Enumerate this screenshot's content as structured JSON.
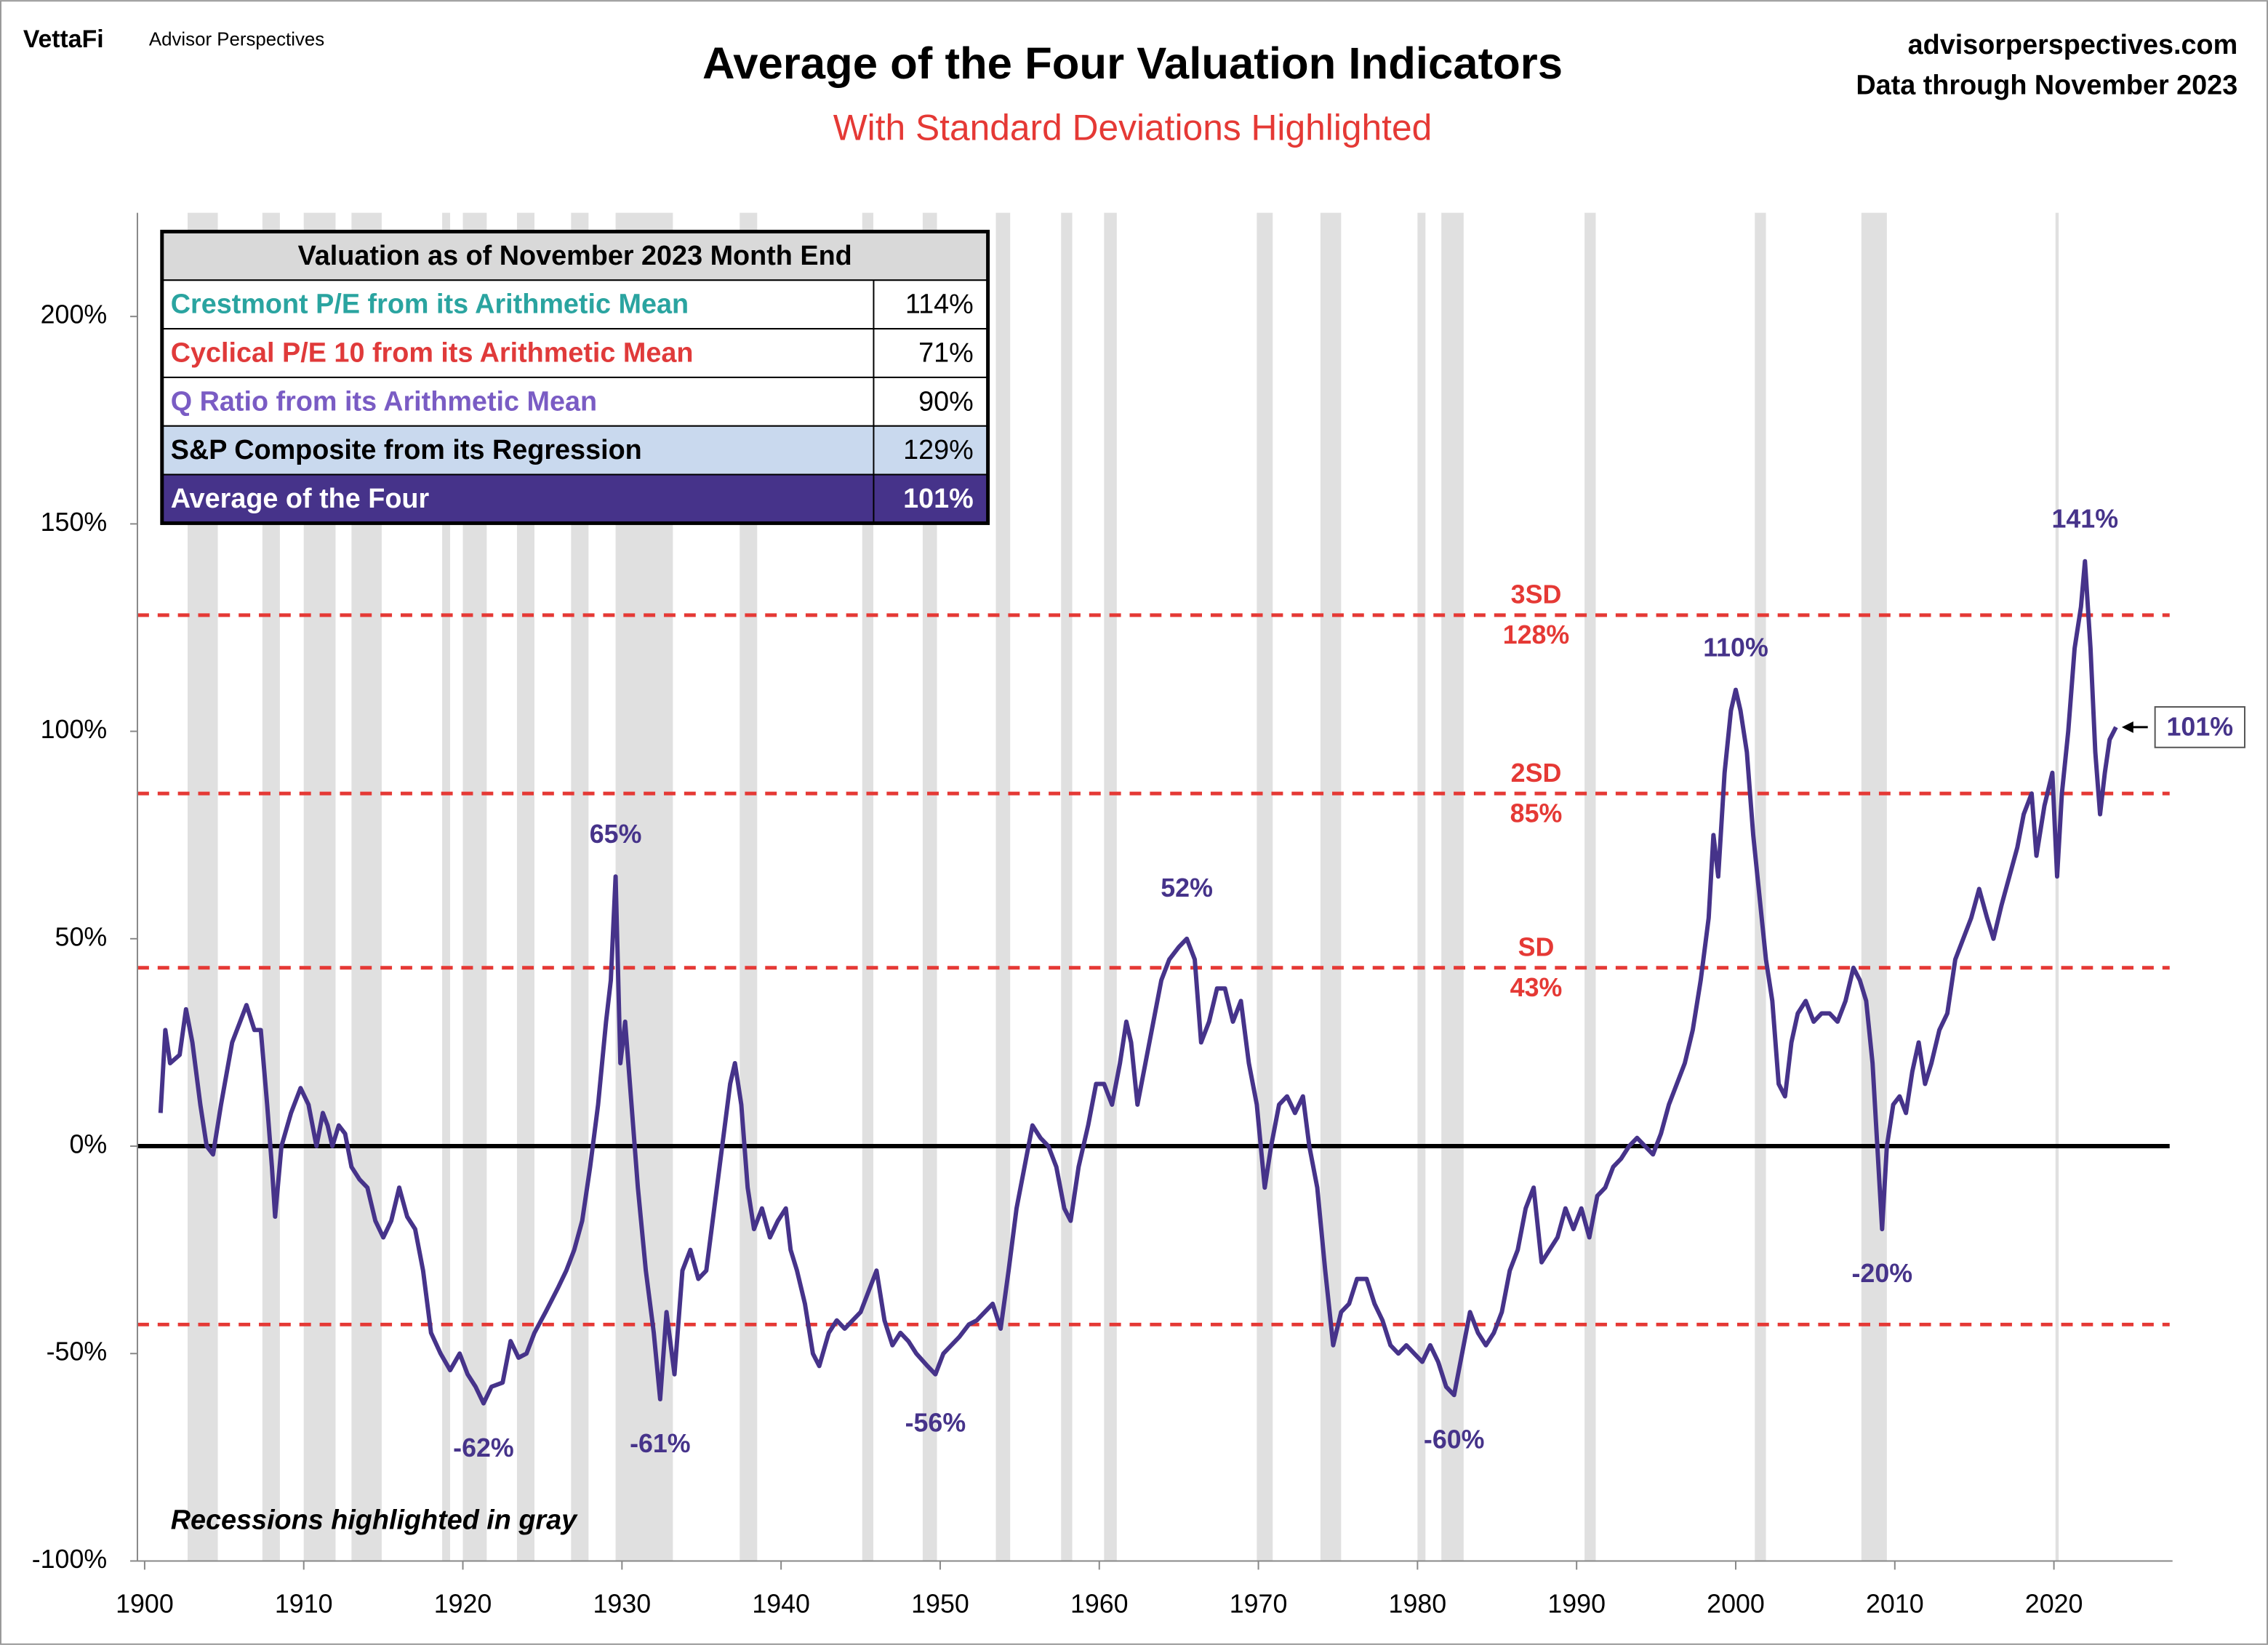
{
  "header": {
    "brand": "VettaFi",
    "brand_sub": "Advisor Perspectives",
    "site": "advisorperspectives.com",
    "data_through": "Data through November 2023"
  },
  "chart_data": {
    "type": "line",
    "title": "Average of the Four Valuation Indicators",
    "subtitle": "With Standard Deviations Highlighted",
    "note": "Recessions highlighted in gray",
    "color": "#46338a",
    "xlim": [
      1899.5,
      2027.5
    ],
    "xticks": [
      1900,
      1910,
      1920,
      1930,
      1940,
      1950,
      1960,
      1970,
      1980,
      1990,
      2000,
      2010,
      2020
    ],
    "ylim": [
      -100,
      225
    ],
    "yticks": [
      {
        "value": -100,
        "label": "-100%"
      },
      {
        "value": -50,
        "label": "-50%"
      },
      {
        "value": 0,
        "label": "0%"
      },
      {
        "value": 50,
        "label": "50%"
      },
      {
        "value": 100,
        "label": "100%"
      },
      {
        "value": 150,
        "label": "150%"
      },
      {
        "value": 200,
        "label": "200%"
      }
    ],
    "recessions": [
      [
        1902.7,
        1904.6
      ],
      [
        1907.4,
        1908.5
      ],
      [
        1910.0,
        1912.0
      ],
      [
        1913.0,
        1914.9
      ],
      [
        1918.7,
        1919.2
      ],
      [
        1920.0,
        1921.5
      ],
      [
        1923.4,
        1924.5
      ],
      [
        1926.8,
        1927.9
      ],
      [
        1929.6,
        1933.2
      ],
      [
        1937.4,
        1938.5
      ],
      [
        1945.1,
        1945.8
      ],
      [
        1948.9,
        1949.8
      ],
      [
        1953.5,
        1954.4
      ],
      [
        1957.6,
        1958.3
      ],
      [
        1960.3,
        1961.1
      ],
      [
        1969.9,
        1970.9
      ],
      [
        1973.9,
        1975.2
      ],
      [
        1980.0,
        1980.5
      ],
      [
        1981.5,
        1982.9
      ],
      [
        1990.5,
        1991.2
      ],
      [
        2001.2,
        2001.9
      ],
      [
        2007.9,
        2009.5
      ],
      [
        2020.1,
        2020.3
      ]
    ],
    "recession_color": "#e0e0e0",
    "reference_lines": [
      {
        "name": "3SD",
        "value": 128,
        "value_label": "128%"
      },
      {
        "name": "2SD",
        "value": 85,
        "value_label": "85%"
      },
      {
        "name": "SD",
        "value": 43,
        "value_label": "43%"
      },
      {
        "value": -43
      }
    ],
    "reference_color": "#e53935",
    "x": [
      1901.0,
      1901.3,
      1901.6,
      1902.2,
      1902.6,
      1903.0,
      1903.5,
      1903.9,
      1904.3,
      1904.8,
      1905.5,
      1906.0,
      1906.4,
      1906.9,
      1907.3,
      1907.7,
      1908.0,
      1908.2,
      1908.6,
      1909.2,
      1909.8,
      1910.3,
      1910.8,
      1911.2,
      1911.5,
      1911.8,
      1912.2,
      1912.6,
      1913.0,
      1913.5,
      1914.0,
      1914.5,
      1915.0,
      1915.5,
      1916.0,
      1916.5,
      1917.0,
      1917.5,
      1918.0,
      1918.6,
      1919.2,
      1919.8,
      1920.3,
      1920.8,
      1921.3,
      1921.8,
      1922.5,
      1923.0,
      1923.5,
      1924.0,
      1924.5,
      1925.2,
      1926.0,
      1926.5,
      1927.0,
      1927.5,
      1928.0,
      1928.5,
      1929.0,
      1929.3,
      1929.6,
      1929.9,
      1930.2,
      1930.6,
      1931.0,
      1931.5,
      1932.0,
      1932.4,
      1932.8,
      1933.3,
      1933.8,
      1934.3,
      1934.8,
      1935.3,
      1935.8,
      1936.3,
      1936.8,
      1937.1,
      1937.5,
      1937.9,
      1938.3,
      1938.8,
      1939.3,
      1939.8,
      1940.3,
      1940.6,
      1941.0,
      1941.5,
      1942.0,
      1942.4,
      1943.0,
      1943.5,
      1944.0,
      1944.5,
      1945.0,
      1945.5,
      1946.0,
      1946.5,
      1947.0,
      1947.5,
      1948.0,
      1948.5,
      1949.2,
      1949.7,
      1950.2,
      1950.7,
      1951.2,
      1951.8,
      1952.3,
      1952.8,
      1953.3,
      1953.8,
      1954.3,
      1954.8,
      1955.3,
      1955.8,
      1956.3,
      1956.8,
      1957.3,
      1957.8,
      1958.2,
      1958.7,
      1959.3,
      1959.8,
      1960.3,
      1960.8,
      1961.3,
      1961.7,
      1962.0,
      1962.4,
      1962.9,
      1963.4,
      1963.9,
      1964.4,
      1965.0,
      1965.5,
      1966.0,
      1966.4,
      1966.9,
      1967.4,
      1967.9,
      1968.4,
      1968.9,
      1969.4,
      1969.9,
      1970.4,
      1970.8,
      1971.3,
      1971.8,
      1972.3,
      1972.8,
      1973.2,
      1973.7,
      1974.2,
      1974.7,
      1975.2,
      1975.7,
      1976.2,
      1976.8,
      1977.3,
      1977.8,
      1978.3,
      1978.8,
      1979.3,
      1979.8,
      1980.3,
      1980.8,
      1981.3,
      1981.8,
      1982.3,
      1982.8,
      1983.3,
      1983.8,
      1984.3,
      1984.8,
      1985.3,
      1985.8,
      1986.3,
      1986.8,
      1987.3,
      1987.8,
      1988.3,
      1988.8,
      1989.3,
      1989.8,
      1990.3,
      1990.8,
      1991.3,
      1991.8,
      1992.3,
      1992.8,
      1993.3,
      1993.8,
      1994.3,
      1994.8,
      1995.3,
      1995.8,
      1996.3,
      1996.8,
      1997.3,
      1997.8,
      1998.3,
      1998.6,
      1998.9,
      1999.3,
      1999.7,
      2000.0,
      2000.3,
      2000.7,
      2001.1,
      2001.5,
      2001.9,
      2002.3,
      2002.7,
      2003.1,
      2003.5,
      2003.9,
      2004.4,
      2004.9,
      2005.4,
      2005.9,
      2006.4,
      2006.9,
      2007.4,
      2007.8,
      2008.2,
      2008.6,
      2008.9,
      2009.2,
      2009.5,
      2009.9,
      2010.3,
      2010.7,
      2011.1,
      2011.5,
      2011.9,
      2012.3,
      2012.8,
      2013.3,
      2013.8,
      2014.3,
      2014.8,
      2015.3,
      2015.8,
      2016.2,
      2016.7,
      2017.2,
      2017.7,
      2018.1,
      2018.6,
      2018.9,
      2019.4,
      2019.9,
      2020.2,
      2020.5,
      2020.9,
      2021.3,
      2021.7,
      2021.95,
      2022.3,
      2022.6,
      2022.9,
      2023.2,
      2023.5,
      2023.9
    ],
    "values": [
      8,
      28,
      20,
      22,
      33,
      25,
      10,
      0,
      -2,
      10,
      25,
      30,
      34,
      28,
      28,
      10,
      -5,
      -17,
      0,
      8,
      14,
      10,
      0,
      8,
      5,
      0,
      5,
      3,
      -5,
      -8,
      -10,
      -18,
      -22,
      -18,
      -10,
      -17,
      -20,
      -30,
      -45,
      -50,
      -54,
      -50,
      -55,
      -58,
      -62,
      -58,
      -57,
      -47,
      -51,
      -50,
      -45,
      -40,
      -34,
      -30,
      -25,
      -18,
      -5,
      10,
      30,
      40,
      65,
      20,
      30,
      10,
      -10,
      -30,
      -45,
      -61,
      -40,
      -55,
      -30,
      -25,
      -32,
      -30,
      -15,
      0,
      15,
      20,
      10,
      -10,
      -20,
      -15,
      -22,
      -18,
      -15,
      -25,
      -30,
      -38,
      -50,
      -53,
      -45,
      -42,
      -44,
      -42,
      -40,
      -35,
      -30,
      -42,
      -48,
      -45,
      -47,
      -50,
      -53,
      -55,
      -50,
      -48,
      -46,
      -43,
      -42,
      -40,
      -38,
      -44,
      -30,
      -15,
      -5,
      5,
      2,
      0,
      -5,
      -15,
      -18,
      -5,
      5,
      15,
      15,
      10,
      20,
      30,
      25,
      10,
      20,
      30,
      40,
      45,
      48,
      50,
      45,
      25,
      30,
      38,
      38,
      30,
      35,
      20,
      10,
      -10,
      0,
      10,
      12,
      8,
      12,
      0,
      -10,
      -30,
      -48,
      -40,
      -38,
      -32,
      -32,
      -38,
      -42,
      -48,
      -50,
      -48,
      -50,
      -52,
      -48,
      -52,
      -58,
      -60,
      -50,
      -40,
      -45,
      -48,
      -45,
      -40,
      -30,
      -25,
      -15,
      -10,
      -28,
      -25,
      -22,
      -15,
      -20,
      -15,
      -22,
      -12,
      -10,
      -5,
      -3,
      0,
      2,
      0,
      -2,
      3,
      10,
      15,
      20,
      28,
      40,
      55,
      75,
      65,
      90,
      105,
      110,
      105,
      95,
      75,
      60,
      45,
      35,
      15,
      12,
      25,
      32,
      35,
      30,
      32,
      32,
      30,
      35,
      43,
      40,
      35,
      20,
      0,
      -20,
      0,
      10,
      12,
      8,
      18,
      25,
      15,
      20,
      28,
      32,
      45,
      50,
      55,
      62,
      55,
      50,
      58,
      65,
      72,
      80,
      85,
      70,
      82,
      90,
      65,
      85,
      100,
      120,
      130,
      141,
      120,
      95,
      80,
      90,
      98,
      101
    ],
    "annotations": [
      {
        "x": 1929.6,
        "value": 65,
        "label": "65%"
      },
      {
        "x": 1921.3,
        "value": -62,
        "label": "-62%"
      },
      {
        "x": 1932.4,
        "value": -61,
        "label": "-61%"
      },
      {
        "x": 1949.7,
        "value": -56,
        "label": "-56%"
      },
      {
        "x": 1965.5,
        "value": 52,
        "label": "52%"
      },
      {
        "x": 1982.3,
        "value": -60,
        "label": "-60%"
      },
      {
        "x": 2000.0,
        "value": 110,
        "label": "110%"
      },
      {
        "x": 2009.2,
        "value": -20,
        "label": "-20%"
      },
      {
        "x": 2021.95,
        "value": 141,
        "label": "141%"
      }
    ],
    "latest_label": {
      "x": 2023.9,
      "value": 101,
      "label": "101%"
    },
    "table": {
      "title": "Valuation as of November 2023 Month End",
      "rows": [
        [
          "Crestmont P/E from its Arithmetic Mean",
          "114%"
        ],
        [
          "Cyclical P/E 10 from its Arithmetic Mean",
          "71%"
        ],
        [
          "Q Ratio from its Arithmetic Mean",
          "90%"
        ],
        [
          "S&P Composite from its Regression",
          "129%"
        ],
        [
          "Average of the Four",
          "101%"
        ]
      ],
      "row_colors": [
        "#2aa4a0",
        "#e03a3a",
        "#7a5cc4",
        "#000000",
        "#ffffff"
      ],
      "row_fills": [
        "#ffffff",
        "#ffffff",
        "#ffffff",
        "#c9d9ee",
        "#46338a"
      ]
    }
  }
}
